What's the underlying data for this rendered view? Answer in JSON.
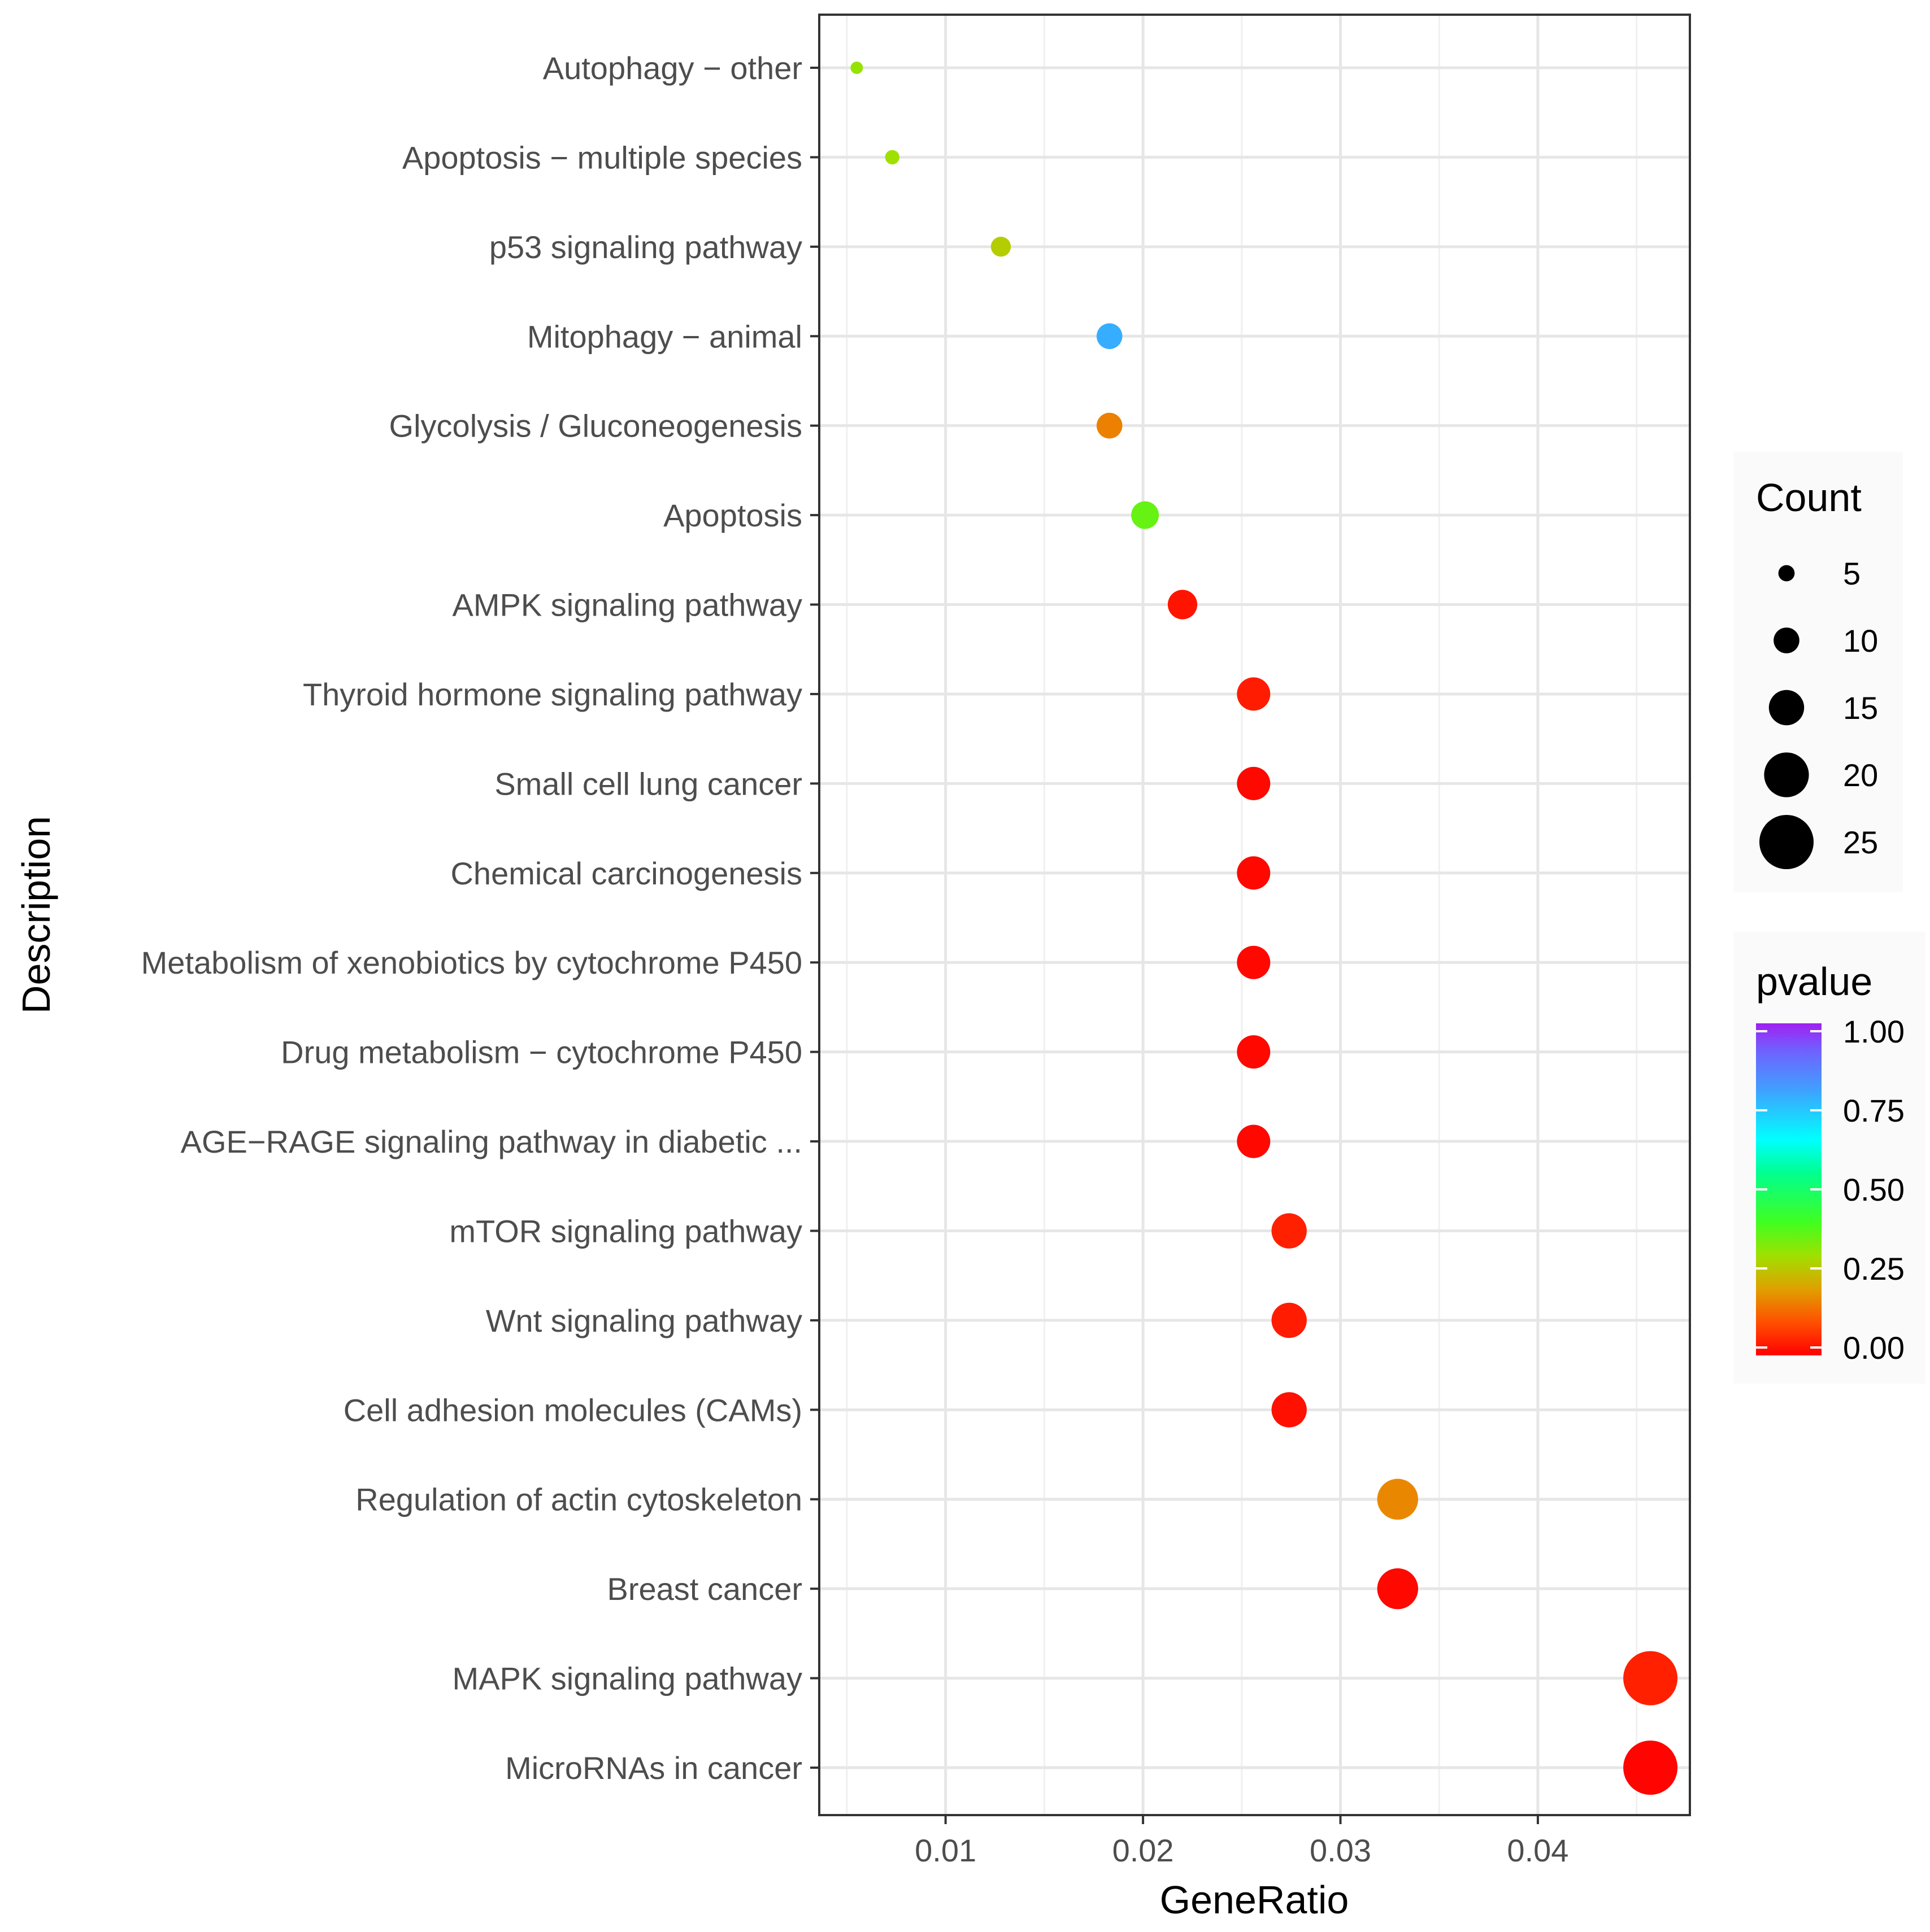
{
  "chart_data": {
    "type": "scatter",
    "subtype": "dot-plot",
    "xlabel": "GeneRatio",
    "ylabel": "Description",
    "xlim": [
      0.0036,
      0.0477
    ],
    "x_ticks": [
      0.01,
      0.02,
      0.03,
      0.04
    ],
    "x_tick_labels": [
      "0.01",
      "0.02",
      "0.03",
      "0.04"
    ],
    "grid": true,
    "categories": [
      "Autophagy − other",
      "Apoptosis − multiple species",
      "p53 signaling pathway",
      "Mitophagy − animal",
      "Glycolysis / Gluconeogenesis",
      "Apoptosis",
      "AMPK signaling pathway",
      "Thyroid hormone signaling pathway",
      "Small cell lung cancer",
      "Chemical carcinogenesis",
      "Metabolism of xenobiotics by cytochrome P450",
      "Drug metabolism − cytochrome P450",
      "AGE−RAGE signaling pathway in diabetic ...",
      "mTOR signaling pathway",
      "Wnt signaling pathway",
      "Cell adhesion molecules (CAMs)",
      "Regulation of actin cytoskeleton",
      "Breast cancer",
      "MAPK signaling pathway",
      "MicroRNAs in cancer"
    ],
    "gene_ratio": [
      0.0055,
      0.0073,
      0.0128,
      0.0183,
      0.0183,
      0.0201,
      0.022,
      0.0256,
      0.0256,
      0.0256,
      0.0256,
      0.0256,
      0.0256,
      0.0274,
      0.0274,
      0.0274,
      0.0329,
      0.0329,
      0.0457,
      0.0457
    ],
    "count": [
      3,
      4,
      7,
      10,
      10,
      11,
      12,
      14,
      14,
      14,
      14,
      14,
      14,
      15,
      15,
      15,
      18,
      18,
      25,
      25
    ],
    "pvalue": [
      0.31,
      0.3,
      0.27,
      0.78,
      0.16,
      0.36,
      0.025,
      0.035,
      0.01,
      0.01,
      0.01,
      0.01,
      0.01,
      0.04,
      0.035,
      0.02,
      0.17,
      0.01,
      0.04,
      0.005
    ],
    "size_legend": {
      "title": "Count",
      "values": [
        5,
        10,
        15,
        20,
        25
      ],
      "labels": [
        "5",
        "10",
        "15",
        "20",
        "25"
      ]
    },
    "color_legend": {
      "title": "pvalue",
      "ticks": [
        1.0,
        0.75,
        0.5,
        0.25,
        0.0
      ],
      "labels": [
        "1.00",
        "0.75",
        "0.50",
        "0.25",
        "0.00"
      ],
      "colors": [
        "#ff0000",
        "#ff8000",
        "#c8c800",
        "#80ff00",
        "#00ff80",
        "#00ffff",
        "#0080ff",
        "#8040ff",
        "#a020f0"
      ]
    }
  }
}
